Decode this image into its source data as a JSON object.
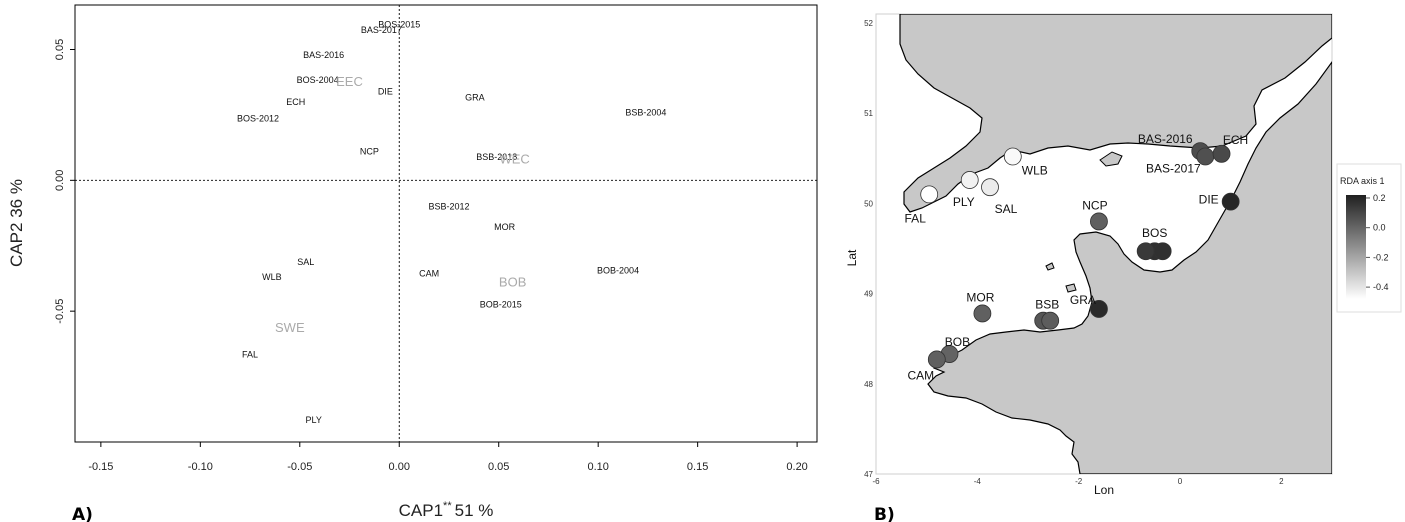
{
  "chart_data": [
    {
      "panel_label": "A)",
      "type": "scatter",
      "xlabel": "CAP1",
      "xlabel_sup": "**",
      "xlabel_pct": "51 %",
      "ylabel": "CAP2  36 %",
      "xlim": [
        -0.163,
        0.21
      ],
      "ylim": [
        -0.1,
        0.067
      ],
      "x_ticks": [
        "-0.15",
        "-0.10",
        "-0.05",
        "0.00",
        "0.05",
        "0.10",
        "0.15",
        "0.20"
      ],
      "x_tick_values": [
        -0.15,
        -0.1,
        -0.05,
        0.0,
        0.05,
        0.1,
        0.15,
        0.2
      ],
      "y_ticks": [
        "-0.05",
        "0.00",
        "0.05"
      ],
      "y_tick_values": [
        -0.05,
        0.0,
        0.05
      ],
      "reference_lines": {
        "x": 0,
        "y": 0
      },
      "points": [
        {
          "label": "BOS-2015",
          "x": 0.0,
          "y": 0.0595
        },
        {
          "label": "BAS-2017",
          "x": -0.009,
          "y": 0.0575
        },
        {
          "label": "BAS-2016",
          "x": -0.038,
          "y": 0.0478
        },
        {
          "label": "BOS-2004",
          "x": -0.041,
          "y": 0.0383
        },
        {
          "label": "DIE",
          "x": -0.007,
          "y": 0.034
        },
        {
          "label": "ECH",
          "x": -0.052,
          "y": 0.03
        },
        {
          "label": "GRA",
          "x": 0.038,
          "y": 0.0317
        },
        {
          "label": "BSB-2004",
          "x": 0.124,
          "y": 0.026
        },
        {
          "label": "BOS-2012",
          "x": -0.071,
          "y": 0.0237
        },
        {
          "label": "NCP",
          "x": -0.015,
          "y": 0.011
        },
        {
          "label": "BSB-2018",
          "x": 0.049,
          "y": 0.009
        },
        {
          "label": "BSB-2012",
          "x": 0.025,
          "y": -0.01
        },
        {
          "label": "MOR",
          "x": 0.053,
          "y": -0.0178
        },
        {
          "label": "SAL",
          "x": -0.047,
          "y": -0.0312
        },
        {
          "label": "CAM",
          "x": 0.015,
          "y": -0.0357
        },
        {
          "label": "BOB-2004",
          "x": 0.11,
          "y": -0.0345
        },
        {
          "label": "WLB",
          "x": -0.064,
          "y": -0.037
        },
        {
          "label": "BOB-2015",
          "x": 0.051,
          "y": -0.0475
        },
        {
          "label": "FAL",
          "x": -0.075,
          "y": -0.0665
        },
        {
          "label": "PLY",
          "x": -0.043,
          "y": -0.0915
        }
      ],
      "group_labels": [
        {
          "label": "EEC",
          "x": -0.025,
          "y": 0.0375
        },
        {
          "label": "WEC",
          "x": 0.058,
          "y": 0.008
        },
        {
          "label": "BOB",
          "x": 0.057,
          "y": -0.039
        },
        {
          "label": "SWE",
          "x": -0.055,
          "y": -0.0565
        }
      ]
    },
    {
      "panel_label": "B)",
      "type": "map",
      "xlabel": "Lon",
      "ylabel": "Lat",
      "lon_ticks": [
        "-6",
        "-4",
        "-2",
        "0",
        "2"
      ],
      "lon_tick_values": [
        -6,
        -4,
        -2,
        0,
        2
      ],
      "lat_ticks": [
        "52",
        "51",
        "50",
        "49",
        "48",
        "47"
      ],
      "lat_tick_values": [
        52,
        51,
        50,
        49,
        48,
        47
      ],
      "lonlim": [
        -6,
        3
      ],
      "latlim": [
        47,
        52.1
      ],
      "legend": {
        "title": "RDA axis 1",
        "ticks": [
          "0.2",
          "0.0",
          "-0.2",
          "-0.4"
        ],
        "tick_values": [
          0.2,
          0.0,
          -0.2,
          -0.4
        ],
        "range": [
          -0.48,
          0.22
        ],
        "color_high": "#202020",
        "color_low": "#ffffff"
      },
      "sites": [
        {
          "label": "BAS-2016",
          "lon": 0.4,
          "lat": 50.58,
          "value": 0.08
        },
        {
          "label": "BAS-2017",
          "lon": 0.5,
          "lat": 50.52,
          "value": 0.07
        },
        {
          "label": "ECH",
          "lon": 0.82,
          "lat": 50.55,
          "value": 0.09
        },
        {
          "label": "DIE",
          "lon": 1.0,
          "lat": 50.02,
          "value": 0.2
        },
        {
          "label": "WLB",
          "lon": -3.3,
          "lat": 50.52,
          "value": -0.46
        },
        {
          "label": "PLY",
          "lon": -4.15,
          "lat": 50.26,
          "value": -0.44
        },
        {
          "label": "SAL",
          "lon": -3.75,
          "lat": 50.18,
          "value": -0.42
        },
        {
          "label": "FAL",
          "lon": -4.95,
          "lat": 50.1,
          "value": -0.48
        },
        {
          "label": "NCP",
          "lon": -1.6,
          "lat": 49.8,
          "value": 0.02
        },
        {
          "label": "BOS",
          "lon": -0.5,
          "lat": 49.47,
          "value": 0.17
        },
        {
          "label": "MOR",
          "lon": -3.9,
          "lat": 48.78,
          "value": 0.02
        },
        {
          "label": "BSB",
          "lon": -2.7,
          "lat": 48.7,
          "value": 0.05
        },
        {
          "label": "GRA",
          "lon": -1.6,
          "lat": 48.83,
          "value": 0.19
        },
        {
          "label": "BOB",
          "lon": -4.55,
          "lat": 48.33,
          "value": 0.01
        },
        {
          "label": "CAM",
          "lon": -4.8,
          "lat": 48.27,
          "value": 0.02
        }
      ],
      "map_labels": [
        {
          "label": "BAS-2016"
        },
        {
          "label": "BAS-2017"
        },
        {
          "label": "ECH"
        },
        {
          "label": "DIE"
        },
        {
          "label": "WLB"
        },
        {
          "label": "PLY"
        },
        {
          "label": "SAL"
        },
        {
          "label": "FAL"
        },
        {
          "label": "NCP"
        },
        {
          "label": "BOS"
        },
        {
          "label": "MOR"
        },
        {
          "label": "BSB"
        },
        {
          "label": "GRA"
        },
        {
          "label": "BOB"
        },
        {
          "label": "CAM"
        }
      ],
      "colors": {
        "land": "#c8c8c8",
        "sea": "#ffffff",
        "outline": "#000000"
      }
    }
  ]
}
